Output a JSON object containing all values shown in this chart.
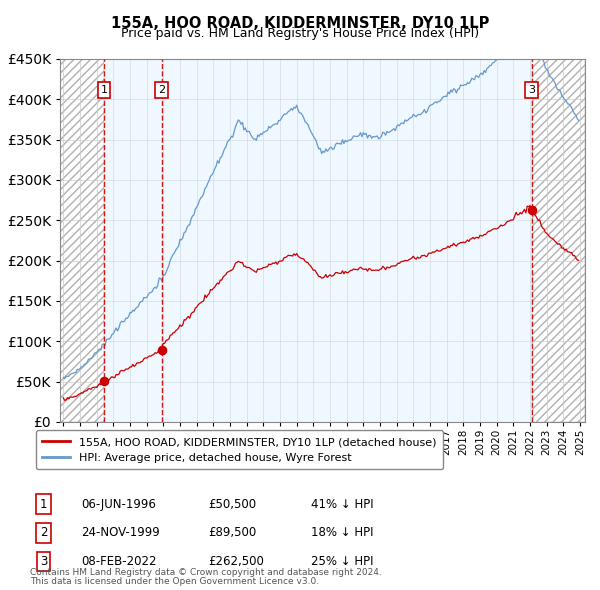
{
  "title": "155A, HOO ROAD, KIDDERMINSTER, DY10 1LP",
  "subtitle": "Price paid vs. HM Land Registry's House Price Index (HPI)",
  "transactions": [
    {
      "num": 1,
      "date_str": "06-JUN-1996",
      "year": 1996.44,
      "price": 50500,
      "pct": "41% ↓ HPI"
    },
    {
      "num": 2,
      "date_str": "24-NOV-1999",
      "year": 1999.9,
      "price": 89500,
      "pct": "18% ↓ HPI"
    },
    {
      "num": 3,
      "date_str": "08-FEB-2022",
      "year": 2022.1,
      "price": 262500,
      "pct": "25% ↓ HPI"
    }
  ],
  "legend_line1": "155A, HOO ROAD, KIDDERMINSTER, DY10 1LP (detached house)",
  "legend_line2": "HPI: Average price, detached house, Wyre Forest",
  "footer1": "Contains HM Land Registry data © Crown copyright and database right 2024.",
  "footer2": "This data is licensed under the Open Government Licence v3.0.",
  "sold_color": "#cc0000",
  "hpi_color": "#6699cc",
  "ylim": [
    0,
    450000
  ],
  "xlim_start": 1993.8,
  "xlim_end": 2025.3,
  "shade_color": "#ddeeff"
}
